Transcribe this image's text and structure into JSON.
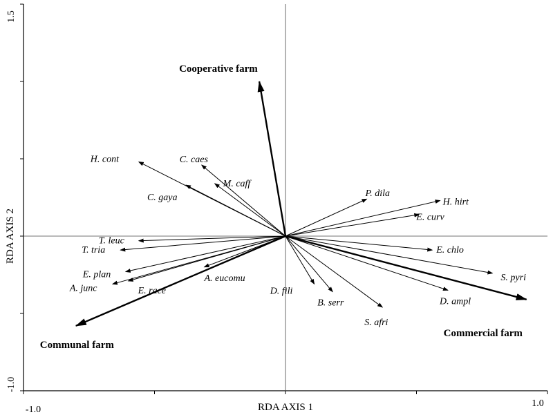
{
  "chart_data": {
    "type": "biplot",
    "xlabel": "RDA AXIS 1",
    "ylabel": "RDA AXIS 2",
    "xlim": [
      -1.0,
      1.0
    ],
    "ylim": [
      -1.0,
      1.5
    ],
    "x_tick_labels": [
      "-1.0",
      "1.0"
    ],
    "y_tick_labels": [
      "-1.0",
      "1.5"
    ],
    "environmental_vectors": [
      {
        "name": "Cooperative farm",
        "x": -0.1,
        "y": 1.0
      },
      {
        "name": "Communal farm",
        "x": -0.8,
        "y": -0.58
      },
      {
        "name": "Commercial farm",
        "x": 0.92,
        "y": -0.41
      }
    ],
    "species": [
      {
        "name": "H. cont",
        "x": -0.56,
        "y": 0.48
      },
      {
        "name": "C. caes",
        "x": -0.32,
        "y": 0.46
      },
      {
        "name": "M. caff",
        "x": -0.27,
        "y": 0.34
      },
      {
        "name": "C. gaya",
        "x": -0.38,
        "y": 0.33
      },
      {
        "name": "T. leuc",
        "x": -0.56,
        "y": -0.03
      },
      {
        "name": "T. tria",
        "x": -0.63,
        "y": -0.09
      },
      {
        "name": "E. plan",
        "x": -0.61,
        "y": -0.23
      },
      {
        "name": "A. junc",
        "x": -0.66,
        "y": -0.31
      },
      {
        "name": "E. race",
        "x": -0.6,
        "y": -0.29
      },
      {
        "name": "A. eucomu",
        "x": -0.31,
        "y": -0.2
      },
      {
        "name": "D. fili",
        "x": 0.11,
        "y": -0.31
      },
      {
        "name": "B. serr",
        "x": 0.18,
        "y": -0.36
      },
      {
        "name": "S. afri",
        "x": 0.37,
        "y": -0.46
      },
      {
        "name": "P. dila",
        "x": 0.31,
        "y": 0.24
      },
      {
        "name": "H. hirt",
        "x": 0.59,
        "y": 0.23
      },
      {
        "name": "E. curv",
        "x": 0.51,
        "y": 0.14
      },
      {
        "name": "E. chlo",
        "x": 0.56,
        "y": -0.09
      },
      {
        "name": "S. pyri",
        "x": 0.79,
        "y": -0.24
      },
      {
        "name": "D. ampl",
        "x": 0.62,
        "y": -0.35
      }
    ]
  }
}
